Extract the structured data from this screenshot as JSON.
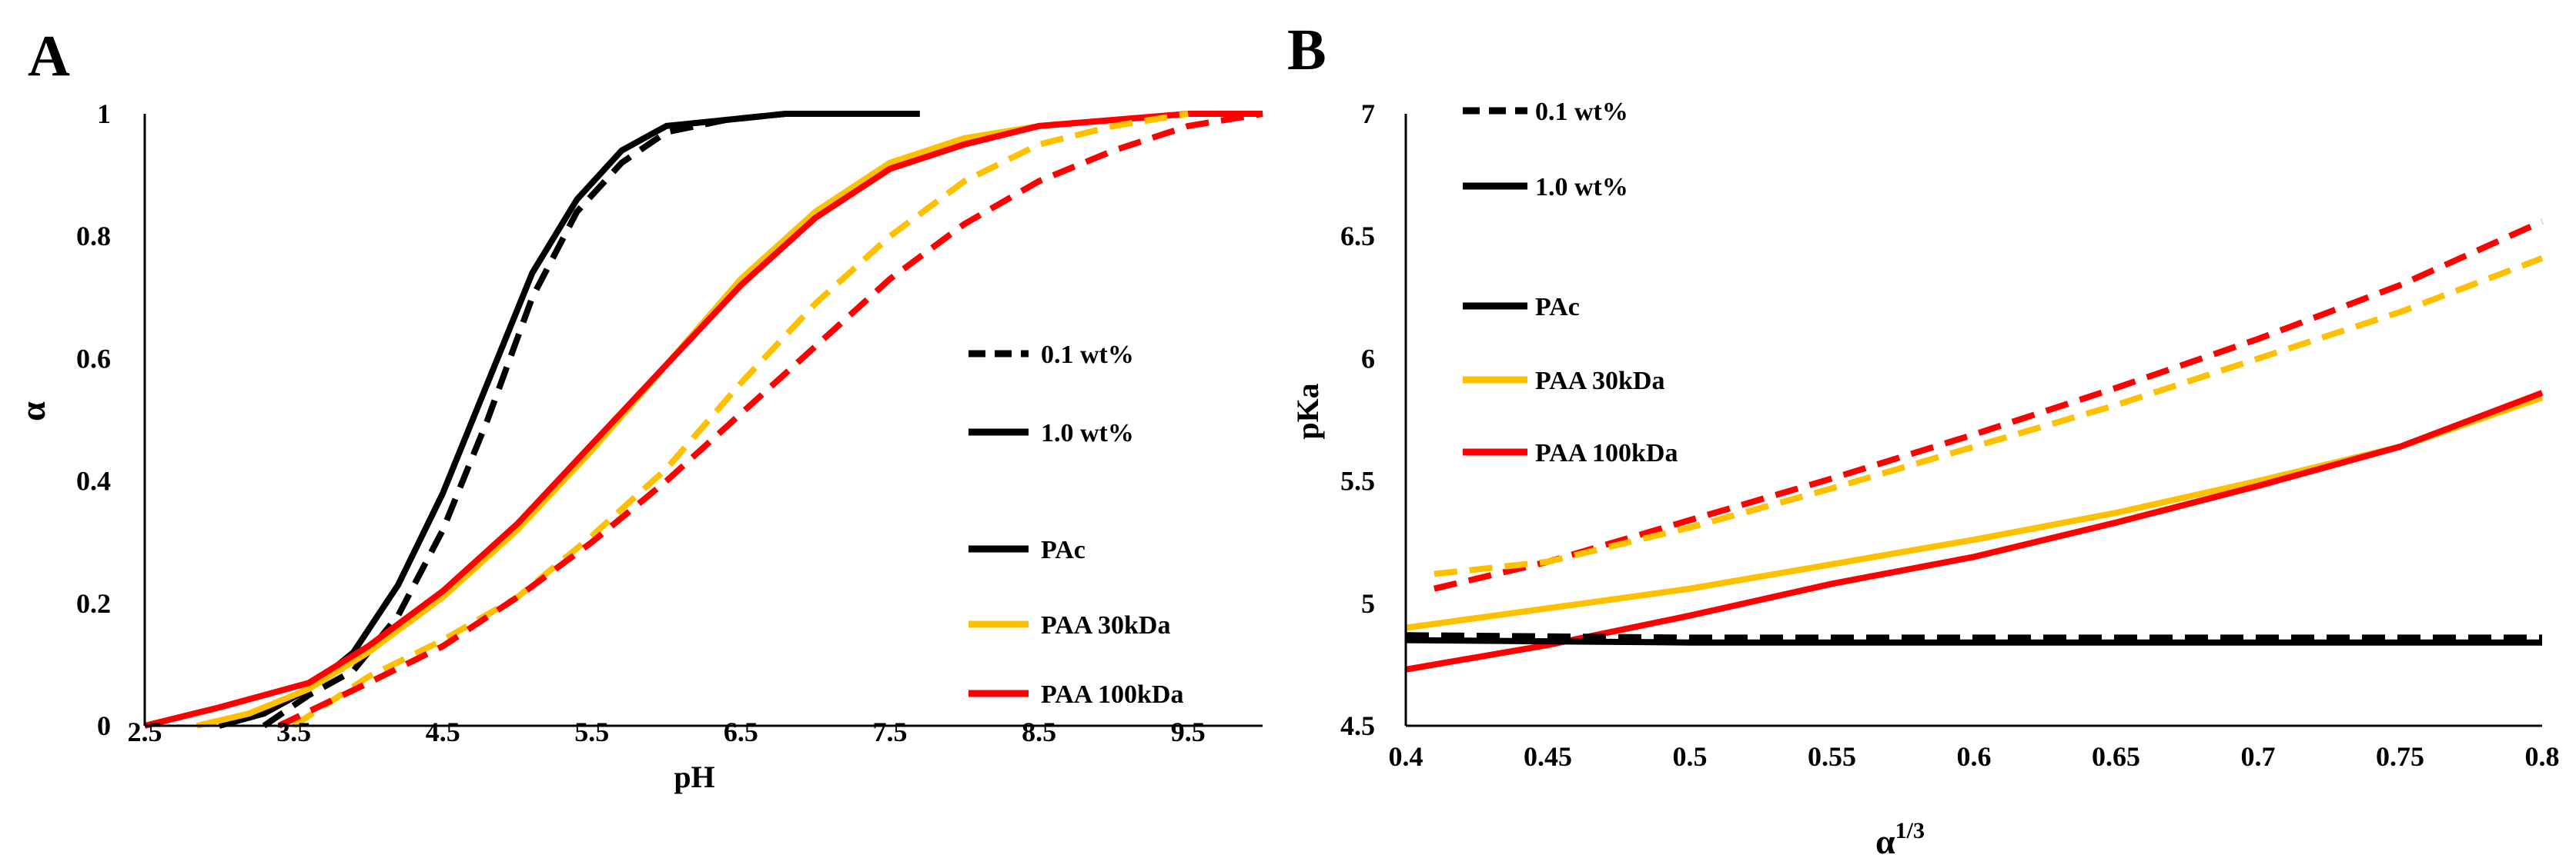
{
  "chart_data": [
    {
      "panel": "A",
      "type": "line",
      "title": "",
      "xlabel": "pH",
      "ylabel": "α",
      "xlim": [
        2.5,
        10.0
      ],
      "ylim": [
        0,
        1
      ],
      "xticks": [
        "2.5",
        "3.5",
        "4.5",
        "5.5",
        "6.5",
        "7.5",
        "8.5",
        "9.5"
      ],
      "yticks": [
        "0",
        "0.2",
        "0.4",
        "0.6",
        "0.8",
        "1"
      ],
      "grid": false,
      "legend": {
        "position": "right",
        "entries": [
          {
            "label": "0.1 wt%",
            "color": "#000000",
            "style": "dashed"
          },
          {
            "label": "1.0 wt%",
            "color": "#000000",
            "style": "solid"
          },
          {
            "label": "PAc",
            "color": "#000000",
            "style": "solid"
          },
          {
            "label": "PAA 30kDa",
            "color": "#FFC000",
            "style": "solid"
          },
          {
            "label": "PAA 100kDa",
            "color": "#FF0000",
            "style": "solid"
          }
        ]
      },
      "series": [
        {
          "name": "PAc 1.0 wt%",
          "color": "#000000",
          "style": "solid",
          "x": [
            3.0,
            3.3,
            3.6,
            3.9,
            4.2,
            4.5,
            4.8,
            5.1,
            5.4,
            5.7,
            6.0,
            6.4,
            6.8,
            7.2,
            7.7
          ],
          "y": [
            0.0,
            0.02,
            0.06,
            0.12,
            0.23,
            0.38,
            0.56,
            0.74,
            0.86,
            0.94,
            0.98,
            0.99,
            1.0,
            1.0,
            1.0
          ]
        },
        {
          "name": "PAc 0.1 wt%",
          "color": "#000000",
          "style": "dashed",
          "x": [
            3.3,
            3.6,
            3.9,
            4.2,
            4.5,
            4.8,
            5.1,
            5.4,
            5.7,
            6.0,
            6.4,
            6.8,
            7.2,
            7.7
          ],
          "y": [
            0.0,
            0.05,
            0.09,
            0.18,
            0.32,
            0.5,
            0.7,
            0.84,
            0.92,
            0.97,
            0.99,
            1.0,
            1.0,
            1.0
          ]
        },
        {
          "name": "PAA 30kDa 1.0 wt%",
          "color": "#FFC000",
          "style": "solid",
          "x": [
            2.85,
            3.2,
            3.6,
            4.0,
            4.5,
            5.0,
            5.5,
            6.0,
            6.5,
            7.0,
            7.5,
            8.0,
            8.5,
            9.0,
            9.5,
            10.0
          ],
          "y": [
            0.0,
            0.02,
            0.06,
            0.12,
            0.21,
            0.32,
            0.45,
            0.59,
            0.73,
            0.84,
            0.92,
            0.96,
            0.98,
            0.99,
            1.0,
            1.0
          ]
        },
        {
          "name": "PAA 100kDa 1.0 wt%",
          "color": "#FF0000",
          "style": "solid",
          "x": [
            2.5,
            3.0,
            3.6,
            4.0,
            4.5,
            5.0,
            5.5,
            6.0,
            6.5,
            7.0,
            7.5,
            8.0,
            8.5,
            9.0,
            9.5,
            10.0
          ],
          "y": [
            0.0,
            0.03,
            0.07,
            0.13,
            0.22,
            0.33,
            0.46,
            0.59,
            0.72,
            0.83,
            0.91,
            0.95,
            0.98,
            0.99,
            1.0,
            1.0
          ]
        },
        {
          "name": "PAA 30kDa 0.1 wt%",
          "color": "#FFC000",
          "style": "dashed",
          "x": [
            3.5,
            4.0,
            4.5,
            5.0,
            5.5,
            6.0,
            6.5,
            7.0,
            7.5,
            8.0,
            8.5,
            9.0,
            9.5
          ],
          "y": [
            0.0,
            0.08,
            0.14,
            0.21,
            0.31,
            0.42,
            0.56,
            0.69,
            0.8,
            0.89,
            0.95,
            0.98,
            1.0
          ]
        },
        {
          "name": "PAA 100kDa 0.1 wt%",
          "color": "#FF0000",
          "style": "dashed",
          "x": [
            3.4,
            4.0,
            4.5,
            5.0,
            5.5,
            6.0,
            6.5,
            7.0,
            7.5,
            8.0,
            8.5,
            9.0,
            9.5,
            10.0
          ],
          "y": [
            0.0,
            0.07,
            0.13,
            0.21,
            0.3,
            0.4,
            0.51,
            0.62,
            0.73,
            0.82,
            0.89,
            0.94,
            0.98,
            1.0
          ]
        }
      ]
    },
    {
      "panel": "B",
      "type": "line",
      "title": "",
      "xlabel": "α",
      "xlabel_superscript": "1/3",
      "ylabel": "pKa",
      "xlim": [
        0.4,
        0.8
      ],
      "ylim": [
        4.5,
        7
      ],
      "xticks": [
        "0.4",
        "0.45",
        "0.5",
        "0.55",
        "0.6",
        "0.65",
        "0.7",
        "0.75",
        "0.8"
      ],
      "yticks": [
        "4.5",
        "5",
        "5.5",
        "6",
        "6.5",
        "7"
      ],
      "grid": false,
      "legend": {
        "position": "top-left",
        "entries": [
          {
            "label": "0.1 wt%",
            "color": "#000000",
            "style": "dashed"
          },
          {
            "label": "1.0 wt%",
            "color": "#000000",
            "style": "solid"
          },
          {
            "label": "PAc",
            "color": "#000000",
            "style": "solid"
          },
          {
            "label": "PAA 30kDa",
            "color": "#FFC000",
            "style": "solid"
          },
          {
            "label": "PAA 100kDa",
            "color": "#FF0000",
            "style": "solid"
          }
        ]
      },
      "series": [
        {
          "name": "PAA 100kDa 0.1 wt%",
          "color": "#FF0000",
          "style": "dashed",
          "x": [
            0.41,
            0.45,
            0.5,
            0.55,
            0.6,
            0.65,
            0.7,
            0.75,
            0.8
          ],
          "y": [
            5.06,
            5.17,
            5.34,
            5.51,
            5.69,
            5.88,
            6.08,
            6.3,
            6.56
          ]
        },
        {
          "name": "PAA 30kDa 0.1 wt%",
          "color": "#FFC000",
          "style": "dashed",
          "x": [
            0.41,
            0.45,
            0.5,
            0.55,
            0.6,
            0.65,
            0.7,
            0.75,
            0.8
          ],
          "y": [
            5.12,
            5.17,
            5.31,
            5.47,
            5.64,
            5.81,
            6.0,
            6.19,
            6.41
          ]
        },
        {
          "name": "PAA 30kDa 1.0 wt%",
          "color": "#FFC000",
          "style": "solid",
          "x": [
            0.4,
            0.45,
            0.5,
            0.55,
            0.6,
            0.65,
            0.7,
            0.75,
            0.8
          ],
          "y": [
            4.9,
            4.98,
            5.06,
            5.16,
            5.26,
            5.37,
            5.5,
            5.64,
            5.84
          ]
        },
        {
          "name": "PAA 100kDa 1.0 wt%",
          "color": "#FF0000",
          "style": "solid",
          "x": [
            0.4,
            0.45,
            0.5,
            0.55,
            0.6,
            0.65,
            0.7,
            0.75,
            0.8
          ],
          "y": [
            4.73,
            4.83,
            4.95,
            5.08,
            5.19,
            5.33,
            5.48,
            5.64,
            5.86
          ]
        },
        {
          "name": "PAc 1.0 wt%",
          "color": "#000000",
          "style": "solid",
          "x": [
            0.4,
            0.5,
            0.6,
            0.7,
            0.8
          ],
          "y": [
            4.85,
            4.84,
            4.84,
            4.84,
            4.84
          ]
        },
        {
          "name": "PAc 0.1 wt%",
          "color": "#000000",
          "style": "dashed",
          "x": [
            0.4,
            0.5,
            0.6,
            0.7,
            0.8
          ],
          "y": [
            4.87,
            4.86,
            4.86,
            4.86,
            4.86
          ]
        }
      ]
    }
  ],
  "panel_letters": [
    "A",
    "B"
  ]
}
